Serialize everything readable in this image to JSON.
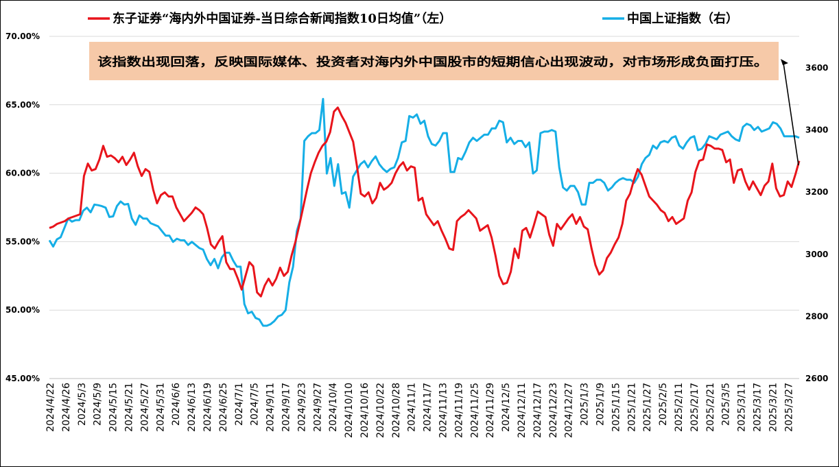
{
  "chart_data": {
    "type": "line",
    "legend": {
      "placement": "top"
    },
    "annotation": {
      "text": "该指数出现回落，反映国际媒体、投资者对海内外中国股市的短期信心出现波动，对市场形成负面打压。",
      "box_color": "#F6C9A8"
    },
    "y_left": {
      "min": 45,
      "max": 70,
      "step": 5,
      "ticks": [
        "45.00%",
        "50.00%",
        "55.00%",
        "60.00%",
        "65.00%",
        "70.00%"
      ]
    },
    "y_right": {
      "min": 2600,
      "max": 3700,
      "step": 200,
      "ticks": [
        "2600",
        "2800",
        "3000",
        "3200",
        "3400",
        "3600"
      ]
    },
    "x_labels": [
      "2024/4/22",
      "2024/4/26",
      "2024/5/3",
      "2024/5/9",
      "2024/5/15",
      "2024/5/21",
      "2024/5/27",
      "2024/5/31",
      "2024/6/6",
      "2024/6/13",
      "2024/6/19",
      "2024/6/25",
      "2024/7/1",
      "2024/7/5",
      "2024/9/11",
      "2024/9/17",
      "2024/9/23",
      "2024/9/27",
      "2024/10/4",
      "2024/10/10",
      "2024/10/16",
      "2024/10/22",
      "2024/10/28",
      "2024/11/1",
      "2024/11/7",
      "2024/11/13",
      "2024/11/19",
      "2024/11/25",
      "2024/11/29",
      "2024/12/5",
      "2024/12/11",
      "2024/12/17",
      "2024/12/23",
      "2024/12/27",
      "2025/1/3",
      "2025/1/9",
      "2025/1/15",
      "2025/1/21",
      "2025/1/27",
      "2025/2/5",
      "2025/2/11",
      "2025/2/17",
      "2025/2/21",
      "2025/3/5",
      "2025/3/11",
      "2025/3/17",
      "2025/3/21",
      "2025/3/27"
    ],
    "series": [
      {
        "name": "东子证券“海内外中国证券-当日综合新闻指数10日均值”（左）",
        "axis": "left",
        "color": "#E8141B",
        "values": [
          56.0,
          56.1,
          56.3,
          56.4,
          56.5,
          56.7,
          56.8,
          56.9,
          57.0,
          59.8,
          60.7,
          60.2,
          60.3,
          61.0,
          62.0,
          61.2,
          61.3,
          61.1,
          60.8,
          61.2,
          60.6,
          61.0,
          61.5,
          60.5,
          59.8,
          60.3,
          60.1,
          58.8,
          57.8,
          58.4,
          58.6,
          58.3,
          58.3,
          57.5,
          57.0,
          56.5,
          56.8,
          57.1,
          57.5,
          57.3,
          57.0,
          56.0,
          54.8,
          54.5,
          55.0,
          55.4,
          53.5,
          53.0,
          53.0,
          52.3,
          51.5,
          52.5,
          53.5,
          53.2,
          51.3,
          51.0,
          51.8,
          52.3,
          51.8,
          52.3,
          53.1,
          52.5,
          52.8,
          54.0,
          55.0,
          56.2,
          57.5,
          58.8,
          60.0,
          60.8,
          61.5,
          62.0,
          62.3,
          63.0,
          64.5,
          64.8,
          64.2,
          63.7,
          63.0,
          62.3,
          60.5,
          58.5,
          58.3,
          58.6,
          57.8,
          58.2,
          59.3,
          58.8,
          59.0,
          59.3,
          60.0,
          60.5,
          60.8,
          60.2,
          60.5,
          60.4,
          58.0,
          58.2,
          57.0,
          56.6,
          56.2,
          56.5,
          55.8,
          55.2,
          54.5,
          54.4,
          56.5,
          56.8,
          57.0,
          57.3,
          57.0,
          56.7,
          55.8,
          56.0,
          56.2,
          55.3,
          54.0,
          52.5,
          51.9,
          52.0,
          52.8,
          54.5,
          53.8,
          55.8,
          56.0,
          55.3,
          56.2,
          57.2,
          57.0,
          56.8,
          55.5,
          54.7,
          56.3,
          55.9,
          56.3,
          56.7,
          57.0,
          56.3,
          56.8,
          56.1,
          55.9,
          54.5,
          53.3,
          52.6,
          52.9,
          53.8,
          54.2,
          54.8,
          55.3,
          56.3,
          58.0,
          58.5,
          59.5,
          60.3,
          59.9,
          59.1,
          58.3,
          58.0,
          57.7,
          57.3,
          57.1,
          56.5,
          56.8,
          56.3,
          56.5,
          56.7,
          58.0,
          58.6,
          60.1,
          60.9,
          61.0,
          62.1,
          62.0,
          61.8,
          61.8,
          61.7,
          60.8,
          61.0,
          59.3,
          60.2,
          60.3,
          59.4,
          58.8,
          59.4,
          58.9,
          58.4,
          59.1,
          59.4,
          60.7,
          58.9,
          58.3,
          58.4,
          59.4,
          59.0,
          59.9,
          60.9
        ]
      },
      {
        "name": "中国上证指数（右）",
        "axis": "right",
        "color": "#15AEE6",
        "values": [
          3045,
          3025,
          3048,
          3055,
          3085,
          3115,
          3105,
          3110,
          3110,
          3140,
          3150,
          3135,
          3160,
          3158,
          3155,
          3150,
          3120,
          3122,
          3155,
          3170,
          3160,
          3162,
          3115,
          3095,
          3125,
          3115,
          3115,
          3100,
          3095,
          3090,
          3075,
          3060,
          3060,
          3040,
          3050,
          3045,
          3045,
          3030,
          3040,
          3030,
          3020,
          3015,
          2985,
          2965,
          2985,
          2955,
          2990,
          3005,
          3005,
          2980,
          2960,
          2960,
          2840,
          2810,
          2815,
          2795,
          2790,
          2770,
          2770,
          2775,
          2785,
          2800,
          2805,
          2820,
          2910,
          2960,
          3075,
          3115,
          3365,
          3380,
          3390,
          3390,
          3400,
          3500,
          3260,
          3310,
          3220,
          3290,
          3195,
          3200,
          3150,
          3250,
          3270,
          3290,
          3300,
          3280,
          3300,
          3315,
          3290,
          3275,
          3265,
          3275,
          3280,
          3310,
          3360,
          3365,
          3445,
          3440,
          3450,
          3420,
          3430,
          3380,
          3355,
          3350,
          3365,
          3390,
          3390,
          3265,
          3265,
          3310,
          3305,
          3330,
          3360,
          3375,
          3365,
          3375,
          3385,
          3385,
          3405,
          3405,
          3430,
          3425,
          3360,
          3375,
          3355,
          3365,
          3365,
          3345,
          3360,
          3260,
          3270,
          3390,
          3395,
          3395,
          3400,
          3395,
          3280,
          3215,
          3205,
          3220,
          3220,
          3200,
          3160,
          3160,
          3230,
          3230,
          3240,
          3240,
          3230,
          3205,
          3215,
          3230,
          3240,
          3245,
          3240,
          3240,
          3230,
          3250,
          3290,
          3310,
          3320,
          3350,
          3340,
          3360,
          3365,
          3360,
          3375,
          3380,
          3350,
          3340,
          3360,
          3375,
          3380,
          3335,
          3340,
          3355,
          3380,
          3375,
          3370,
          3385,
          3390,
          3395,
          3380,
          3370,
          3365,
          3410,
          3420,
          3415,
          3400,
          3410,
          3395,
          3400,
          3405,
          3425,
          3420,
          3405,
          3380,
          3380,
          3380,
          3380,
          3375
        ]
      }
    ]
  }
}
